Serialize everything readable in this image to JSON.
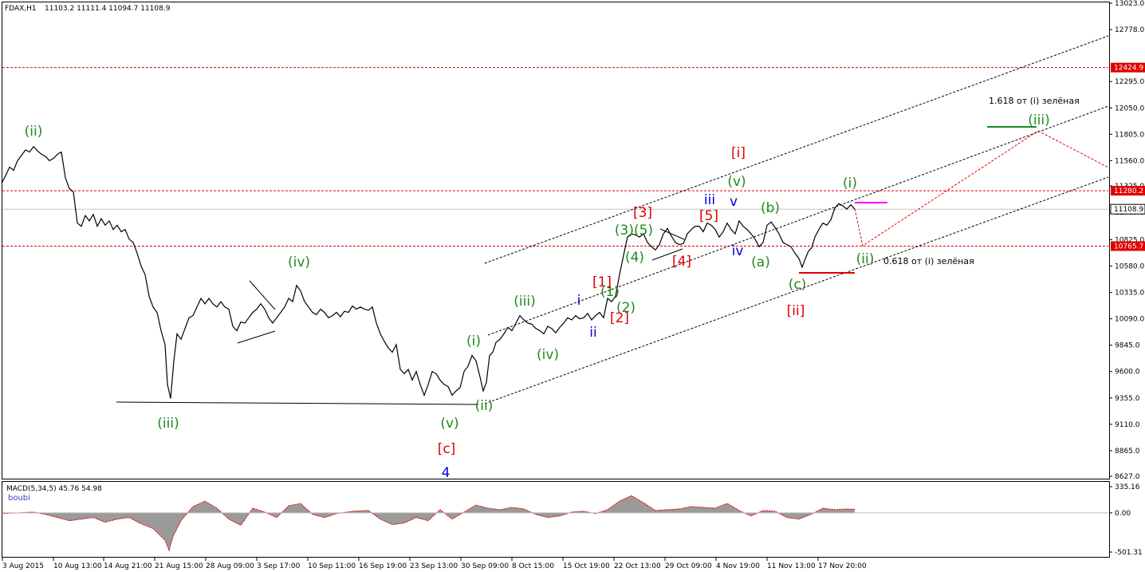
{
  "header": {
    "symbol": "FDAX,H1",
    "ohlc": "11103.2 11111.4 11094.7 11108.9"
  },
  "macd": {
    "title": "MACD(5,34,5) 45.76 54.98",
    "indicator_name": "boubi",
    "ticks": [
      "335.16",
      "0.00",
      "-501.31"
    ]
  },
  "colors": {
    "green": "#1e8a1e",
    "red": "#e00000",
    "blue": "#0000e0",
    "magenta": "#ff00ff",
    "grid": "#999999"
  },
  "chart_data": {
    "type": "line",
    "price_axis": {
      "ticks": [
        "13023.0",
        "12778.0",
        "12295.0",
        "12050.0",
        "11805.0",
        "11560.0",
        "11325.0",
        "11080.0",
        "10825.0",
        "10580.0",
        "10335.0",
        "10090.0",
        "9845.0",
        "9600.0",
        "9355.0",
        "9110.0",
        "8865.0",
        "8627.0"
      ],
      "range": [
        8627,
        13023
      ]
    },
    "date_axis": {
      "ticks": [
        "3 Aug 2015",
        "10 Aug 13:00",
        "14 Aug 21:00",
        "21 Aug 15:00",
        "28 Aug 09:00",
        "3 Sep 17:00",
        "10 Sep 11:00",
        "16 Sep 19:00",
        "23 Sep 13:00",
        "30 Sep 09:00",
        "8 Oct 15:00",
        "15 Oct 19:00",
        "22 Oct 13:00",
        "29 Oct 09:00",
        "4 Nov 19:00",
        "11 Nov 13:00",
        "17 Nov 20:00"
      ]
    },
    "level_markers": [
      {
        "value": "12424.9",
        "color": "#e00000"
      },
      {
        "value": "11280.2",
        "color": "#e00000"
      },
      {
        "value": "11108.9",
        "color": "#ffffff"
      },
      {
        "value": "10765.7",
        "color": "#e00000"
      }
    ],
    "price_path": [
      [
        0,
        11350
      ],
      [
        5,
        11420
      ],
      [
        10,
        11500
      ],
      [
        15,
        11470
      ],
      [
        20,
        11560
      ],
      [
        25,
        11610
      ],
      [
        30,
        11660
      ],
      [
        35,
        11640
      ],
      [
        40,
        11690
      ],
      [
        45,
        11650
      ],
      [
        50,
        11620
      ],
      [
        55,
        11600
      ],
      [
        60,
        11560
      ],
      [
        65,
        11580
      ],
      [
        70,
        11620
      ],
      [
        75,
        11640
      ],
      [
        80,
        11400
      ],
      [
        85,
        11300
      ],
      [
        90,
        11270
      ],
      [
        95,
        10980
      ],
      [
        100,
        10950
      ],
      [
        105,
        11050
      ],
      [
        110,
        11000
      ],
      [
        115,
        11060
      ],
      [
        120,
        10950
      ],
      [
        125,
        11020
      ],
      [
        130,
        10960
      ],
      [
        135,
        11000
      ],
      [
        140,
        10920
      ],
      [
        145,
        10960
      ],
      [
        150,
        10900
      ],
      [
        155,
        10920
      ],
      [
        160,
        10830
      ],
      [
        165,
        10800
      ],
      [
        170,
        10700
      ],
      [
        175,
        10580
      ],
      [
        180,
        10500
      ],
      [
        185,
        10300
      ],
      [
        190,
        10200
      ],
      [
        195,
        10150
      ],
      [
        200,
        9980
      ],
      [
        205,
        9850
      ],
      [
        208,
        9480
      ],
      [
        212,
        9350
      ],
      [
        216,
        9700
      ],
      [
        220,
        9950
      ],
      [
        225,
        9900
      ],
      [
        230,
        10000
      ],
      [
        235,
        10100
      ],
      [
        240,
        10120
      ],
      [
        245,
        10200
      ],
      [
        250,
        10280
      ],
      [
        255,
        10230
      ],
      [
        260,
        10280
      ],
      [
        265,
        10230
      ],
      [
        270,
        10200
      ],
      [
        275,
        10250
      ],
      [
        280,
        10200
      ],
      [
        285,
        10180
      ],
      [
        290,
        10020
      ],
      [
        295,
        9980
      ],
      [
        300,
        10060
      ],
      [
        305,
        10050
      ],
      [
        310,
        10100
      ],
      [
        315,
        10150
      ],
      [
        320,
        10180
      ],
      [
        325,
        10230
      ],
      [
        330,
        10180
      ],
      [
        335,
        10100
      ],
      [
        340,
        10050
      ],
      [
        345,
        10100
      ],
      [
        350,
        10150
      ],
      [
        355,
        10200
      ],
      [
        360,
        10280
      ],
      [
        365,
        10250
      ],
      [
        370,
        10400
      ],
      [
        375,
        10350
      ],
      [
        380,
        10250
      ],
      [
        385,
        10200
      ],
      [
        390,
        10150
      ],
      [
        395,
        10130
      ],
      [
        400,
        10180
      ],
      [
        405,
        10150
      ],
      [
        410,
        10100
      ],
      [
        415,
        10120
      ],
      [
        420,
        10150
      ],
      [
        425,
        10110
      ],
      [
        430,
        10160
      ],
      [
        435,
        10150
      ],
      [
        440,
        10210
      ],
      [
        445,
        10180
      ],
      [
        450,
        10200
      ],
      [
        455,
        10180
      ],
      [
        460,
        10170
      ],
      [
        465,
        10200
      ],
      [
        470,
        10050
      ],
      [
        475,
        9950
      ],
      [
        480,
        9880
      ],
      [
        485,
        9820
      ],
      [
        490,
        9780
      ],
      [
        495,
        9850
      ],
      [
        500,
        9620
      ],
      [
        505,
        9580
      ],
      [
        510,
        9620
      ],
      [
        515,
        9520
      ],
      [
        520,
        9600
      ],
      [
        525,
        9480
      ],
      [
        530,
        9380
      ],
      [
        535,
        9480
      ],
      [
        540,
        9600
      ],
      [
        545,
        9580
      ],
      [
        550,
        9520
      ],
      [
        555,
        9480
      ],
      [
        560,
        9460
      ],
      [
        565,
        9380
      ],
      [
        570,
        9420
      ],
      [
        575,
        9450
      ],
      [
        580,
        9600
      ],
      [
        585,
        9650
      ],
      [
        590,
        9750
      ],
      [
        595,
        9700
      ],
      [
        600,
        9550
      ],
      [
        604,
        9420
      ],
      [
        608,
        9500
      ],
      [
        612,
        9750
      ],
      [
        616,
        9780
      ],
      [
        620,
        9870
      ],
      [
        625,
        9900
      ],
      [
        630,
        9950
      ],
      [
        635,
        10010
      ],
      [
        640,
        9980
      ],
      [
        645,
        10050
      ],
      [
        650,
        10120
      ],
      [
        655,
        10080
      ],
      [
        660,
        10050
      ],
      [
        665,
        10040
      ],
      [
        670,
        10000
      ],
      [
        675,
        9980
      ],
      [
        680,
        9950
      ],
      [
        685,
        10020
      ],
      [
        690,
        10000
      ],
      [
        695,
        9960
      ],
      [
        700,
        10010
      ],
      [
        705,
        10050
      ],
      [
        710,
        10100
      ],
      [
        715,
        10080
      ],
      [
        720,
        10120
      ],
      [
        725,
        10090
      ],
      [
        730,
        10100
      ],
      [
        735,
        10140
      ],
      [
        740,
        10080
      ],
      [
        745,
        10120
      ],
      [
        750,
        10150
      ],
      [
        755,
        10100
      ],
      [
        760,
        10280
      ],
      [
        765,
        10250
      ],
      [
        770,
        10300
      ],
      [
        775,
        10500
      ],
      [
        780,
        10680
      ],
      [
        785,
        10850
      ],
      [
        790,
        10880
      ],
      [
        795,
        10870
      ],
      [
        800,
        10850
      ],
      [
        805,
        10880
      ],
      [
        810,
        10800
      ],
      [
        815,
        10760
      ],
      [
        820,
        10730
      ],
      [
        825,
        10780
      ],
      [
        830,
        10880
      ],
      [
        835,
        10930
      ],
      [
        840,
        10860
      ],
      [
        845,
        10800
      ],
      [
        850,
        10780
      ],
      [
        855,
        10790
      ],
      [
        860,
        10880
      ],
      [
        865,
        10920
      ],
      [
        870,
        10950
      ],
      [
        875,
        10950
      ],
      [
        880,
        10900
      ],
      [
        885,
        10980
      ],
      [
        890,
        10960
      ],
      [
        895,
        10920
      ],
      [
        900,
        10850
      ],
      [
        905,
        10900
      ],
      [
        910,
        10980
      ],
      [
        915,
        10920
      ],
      [
        920,
        10880
      ],
      [
        925,
        11000
      ],
      [
        930,
        10950
      ],
      [
        935,
        10920
      ],
      [
        940,
        10880
      ],
      [
        945,
        10830
      ],
      [
        950,
        10760
      ],
      [
        955,
        10800
      ],
      [
        960,
        10960
      ],
      [
        965,
        10990
      ],
      [
        970,
        10940
      ],
      [
        975,
        10880
      ],
      [
        980,
        10800
      ],
      [
        985,
        10780
      ],
      [
        990,
        10760
      ],
      [
        995,
        10700
      ],
      [
        1000,
        10650
      ],
      [
        1004,
        10570
      ],
      [
        1008,
        10650
      ],
      [
        1012,
        10720
      ],
      [
        1016,
        10750
      ],
      [
        1020,
        10850
      ],
      [
        1025,
        10920
      ],
      [
        1030,
        10980
      ],
      [
        1035,
        10960
      ],
      [
        1040,
        11010
      ],
      [
        1045,
        11120
      ],
      [
        1050,
        11160
      ],
      [
        1055,
        11140
      ],
      [
        1060,
        11110
      ],
      [
        1065,
        11150
      ],
      [
        1070,
        11108.9
      ]
    ],
    "macd_path": [
      [
        0,
        -10
      ],
      [
        20,
        0
      ],
      [
        40,
        10
      ],
      [
        55,
        -20
      ],
      [
        70,
        -60
      ],
      [
        85,
        -100
      ],
      [
        100,
        -80
      ],
      [
        115,
        -60
      ],
      [
        130,
        -120
      ],
      [
        145,
        -80
      ],
      [
        160,
        -60
      ],
      [
        175,
        -140
      ],
      [
        190,
        -200
      ],
      [
        205,
        -350
      ],
      [
        210,
        -480
      ],
      [
        215,
        -300
      ],
      [
        225,
        -100
      ],
      [
        240,
        80
      ],
      [
        255,
        150
      ],
      [
        270,
        60
      ],
      [
        285,
        -80
      ],
      [
        300,
        -160
      ],
      [
        315,
        60
      ],
      [
        330,
        10
      ],
      [
        345,
        -60
      ],
      [
        360,
        90
      ],
      [
        375,
        120
      ],
      [
        390,
        -20
      ],
      [
        405,
        -60
      ],
      [
        420,
        -10
      ],
      [
        440,
        20
      ],
      [
        460,
        30
      ],
      [
        475,
        -80
      ],
      [
        490,
        -150
      ],
      [
        505,
        -130
      ],
      [
        520,
        -60
      ],
      [
        535,
        -100
      ],
      [
        550,
        40
      ],
      [
        565,
        -80
      ],
      [
        580,
        10
      ],
      [
        595,
        100
      ],
      [
        610,
        60
      ],
      [
        625,
        40
      ],
      [
        640,
        70
      ],
      [
        655,
        50
      ],
      [
        670,
        -20
      ],
      [
        685,
        -60
      ],
      [
        700,
        -40
      ],
      [
        715,
        10
      ],
      [
        730,
        20
      ],
      [
        745,
        -10
      ],
      [
        760,
        40
      ],
      [
        775,
        150
      ],
      [
        790,
        220
      ],
      [
        805,
        130
      ],
      [
        820,
        30
      ],
      [
        835,
        40
      ],
      [
        850,
        50
      ],
      [
        865,
        80
      ],
      [
        880,
        70
      ],
      [
        895,
        60
      ],
      [
        910,
        120
      ],
      [
        925,
        30
      ],
      [
        940,
        -40
      ],
      [
        955,
        30
      ],
      [
        970,
        20
      ],
      [
        985,
        -60
      ],
      [
        1000,
        -80
      ],
      [
        1015,
        -20
      ],
      [
        1030,
        60
      ],
      [
        1045,
        40
      ],
      [
        1060,
        50
      ],
      [
        1070,
        45.76
      ]
    ],
    "wave_labels": [
      {
        "text": "(ii)",
        "color": "#1e8a1e"
      },
      {
        "text": "(iii)",
        "color": "#1e8a1e"
      },
      {
        "text": "(iv)",
        "color": "#1e8a1e"
      },
      {
        "text": "(v)",
        "color": "#1e8a1e"
      },
      {
        "text": "[c]",
        "color": "#e00000"
      },
      {
        "text": "4",
        "color": "#0000e0"
      },
      {
        "text": "(i)",
        "color": "#1e8a1e"
      },
      {
        "text": "(ii)",
        "color": "#1e8a1e"
      },
      {
        "text": "(iii)",
        "color": "#1e8a1e"
      },
      {
        "text": "(iv)",
        "color": "#1e8a1e"
      },
      {
        "text": "i",
        "color": "#0000e0"
      },
      {
        "text": "ii",
        "color": "#0000e0"
      },
      {
        "text": "(1)",
        "color": "#1e8a1e"
      },
      {
        "text": "(2)",
        "color": "#1e8a1e"
      },
      {
        "text": "[1]",
        "color": "#e00000"
      },
      {
        "text": "[2]",
        "color": "#e00000"
      },
      {
        "text": "(3)(5)",
        "color": "#1e8a1e"
      },
      {
        "text": "(4)",
        "color": "#1e8a1e"
      },
      {
        "text": "[3]",
        "color": "#e00000"
      },
      {
        "text": "[4]",
        "color": "#e00000"
      },
      {
        "text": "[5]",
        "color": "#e00000"
      },
      {
        "text": "iii",
        "color": "#0000e0"
      },
      {
        "text": "v",
        "color": "#0000e0"
      },
      {
        "text": "iv",
        "color": "#0000e0"
      },
      {
        "text": "(v)",
        "color": "#1e8a1e"
      },
      {
        "text": "[i]",
        "color": "#e00000"
      },
      {
        "text": "(a)",
        "color": "#1e8a1e"
      },
      {
        "text": "(b)",
        "color": "#1e8a1e"
      },
      {
        "text": "(c)",
        "color": "#1e8a1e"
      },
      {
        "text": "[ii]",
        "color": "#e00000"
      },
      {
        "text": "(i)",
        "color": "#1e8a1e"
      },
      {
        "text": "(ii)",
        "color": "#1e8a1e"
      },
      {
        "text": "(iii)",
        "color": "#1e8a1e"
      }
    ],
    "annotations": [
      {
        "text": "1.618 от (i) зелёная"
      },
      {
        "text": "0.618 от (i) зелёная"
      }
    ]
  }
}
